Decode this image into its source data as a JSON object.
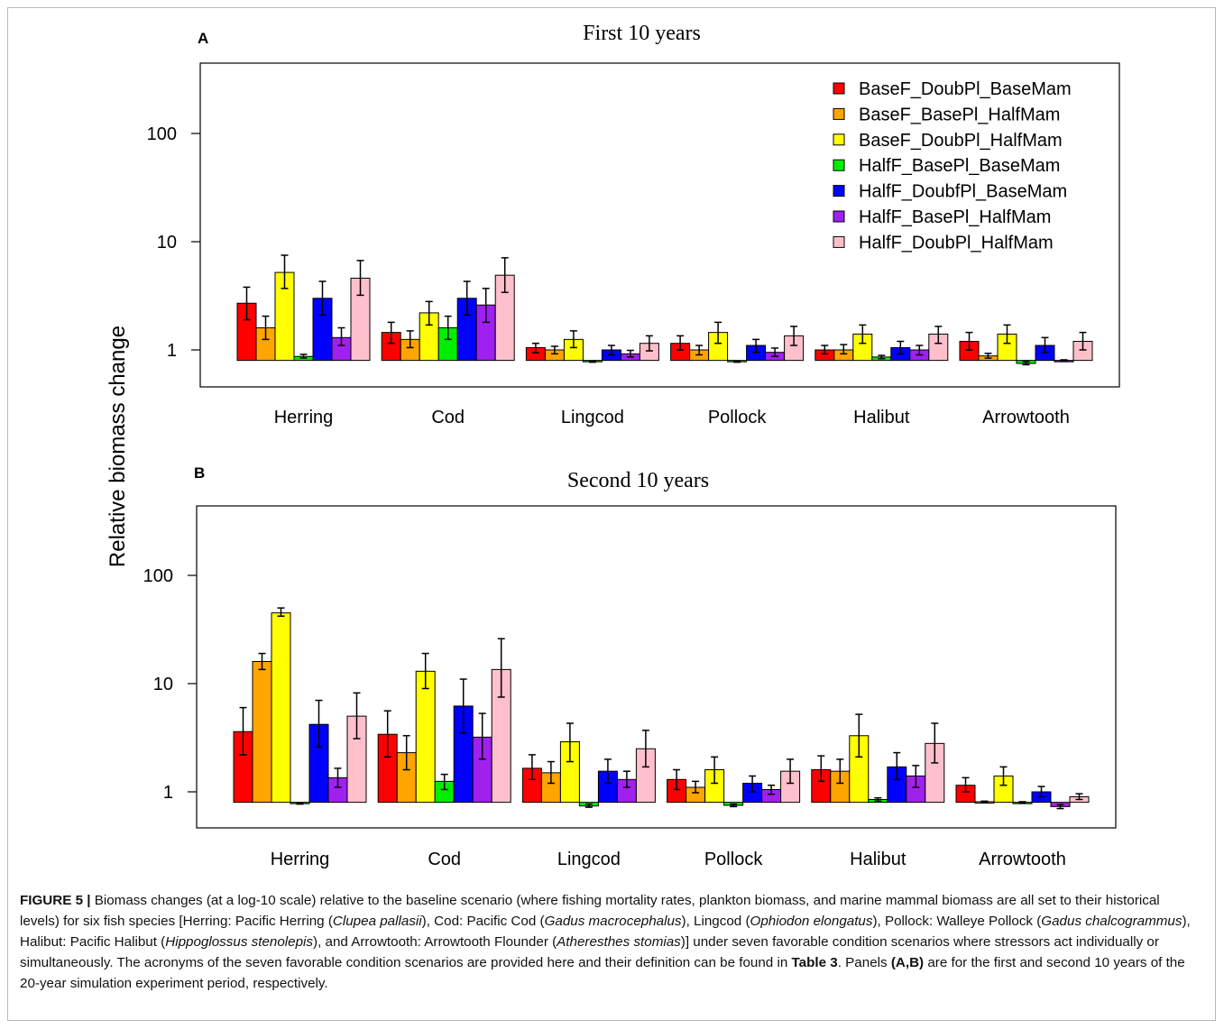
{
  "figure": {
    "ylabel": "Relative biomass change",
    "legend": {
      "position": "top-right",
      "entries": [
        {
          "name": "BaseF_DoubPl_BaseMam",
          "color": "#ff0000"
        },
        {
          "name": "BaseF_BasePl_HalfMam",
          "color": "#ffa500"
        },
        {
          "name": "BaseF_DoubPl_HalfMam",
          "color": "#ffff00"
        },
        {
          "name": "HalfF_BasePl_BaseMam",
          "color": "#00ee00"
        },
        {
          "name": "HalfF_DoubfPl_BaseMam",
          "color": "#0000ff"
        },
        {
          "name": "HalfF_BasePl_HalfMam",
          "color": "#a020f0"
        },
        {
          "name": "HalfF_DoubPl_HalfMam",
          "color": "#ffc0cb"
        }
      ]
    }
  },
  "chart_data": [
    {
      "type": "bar",
      "panel": "A",
      "title": "First 10 years",
      "scale": "log10",
      "yticks": [
        1,
        10,
        100
      ],
      "ytick_labels": [
        "1",
        "10",
        "100"
      ],
      "ylim": [
        0.8,
        300
      ],
      "baseline": 0.8,
      "categories": [
        "Herring",
        "Cod",
        "Lingcod",
        "Pollock",
        "Halibut",
        "Arrowtooth"
      ],
      "series": [
        {
          "name": "BaseF_DoubPl_BaseMam",
          "values": [
            2.7,
            1.45,
            1.05,
            1.15,
            1.0,
            1.2
          ],
          "err_low": [
            1.9,
            1.15,
            0.94,
            1.0,
            0.92,
            1.0
          ],
          "err_high": [
            3.8,
            1.8,
            1.15,
            1.35,
            1.1,
            1.45
          ]
        },
        {
          "name": "BaseF_BasePl_HalfMam",
          "values": [
            1.6,
            1.25,
            1.0,
            1.0,
            1.0,
            0.88
          ],
          "err_low": [
            1.25,
            1.05,
            0.92,
            0.9,
            0.92,
            0.84
          ],
          "err_high": [
            2.05,
            1.5,
            1.08,
            1.1,
            1.12,
            0.93
          ]
        },
        {
          "name": "BaseF_DoubPl_HalfMam",
          "values": [
            5.2,
            2.2,
            1.25,
            1.45,
            1.4,
            1.4
          ],
          "err_low": [
            3.7,
            1.7,
            1.05,
            1.15,
            1.15,
            1.15
          ],
          "err_high": [
            7.5,
            2.8,
            1.5,
            1.8,
            1.7,
            1.7
          ]
        },
        {
          "name": "HalfF_BasePl_BaseMam",
          "values": [
            0.87,
            1.6,
            0.78,
            0.78,
            0.86,
            0.75
          ],
          "err_low": [
            0.84,
            1.25,
            0.77,
            0.77,
            0.83,
            0.73
          ],
          "err_high": [
            0.91,
            2.05,
            0.79,
            0.79,
            0.89,
            0.78
          ]
        },
        {
          "name": "HalfF_DoubfPl_BaseMam",
          "values": [
            3.0,
            3.0,
            1.0,
            1.1,
            1.05,
            1.1
          ],
          "err_low": [
            2.1,
            2.1,
            0.9,
            0.95,
            0.92,
            0.95
          ],
          "err_high": [
            4.3,
            4.3,
            1.1,
            1.25,
            1.2,
            1.3
          ]
        },
        {
          "name": "HalfF_BasePl_HalfMam",
          "values": [
            1.3,
            2.6,
            0.92,
            0.95,
            1.0,
            0.8
          ],
          "err_low": [
            1.1,
            1.8,
            0.86,
            0.87,
            0.9,
            0.79
          ],
          "err_high": [
            1.6,
            3.7,
            0.99,
            1.04,
            1.1,
            0.81
          ]
        },
        {
          "name": "HalfF_DoubPl_HalfMam",
          "values": [
            4.6,
            4.9,
            1.15,
            1.35,
            1.4,
            1.2
          ],
          "err_low": [
            3.2,
            3.4,
            0.98,
            1.1,
            1.15,
            1.0
          ],
          "err_high": [
            6.7,
            7.1,
            1.35,
            1.65,
            1.65,
            1.45
          ]
        }
      ]
    },
    {
      "type": "bar",
      "panel": "B",
      "title": "Second 10 years",
      "scale": "log10",
      "yticks": [
        1,
        10,
        100
      ],
      "ytick_labels": [
        "1",
        "10",
        "100"
      ],
      "ylim": [
        0.8,
        300
      ],
      "baseline": 0.8,
      "categories": [
        "Herring",
        "Cod",
        "Lingcod",
        "Pollock",
        "Halibut",
        "Arrowtooth"
      ],
      "series": [
        {
          "name": "BaseF_DoubPl_BaseMam",
          "values": [
            3.6,
            3.4,
            1.65,
            1.3,
            1.6,
            1.15
          ],
          "err_low": [
            2.2,
            2.1,
            1.3,
            1.05,
            1.25,
            1.0
          ],
          "err_high": [
            6.0,
            5.6,
            2.2,
            1.6,
            2.15,
            1.35
          ]
        },
        {
          "name": "BaseF_BasePl_HalfMam",
          "values": [
            16,
            2.3,
            1.5,
            1.1,
            1.55,
            0.81
          ],
          "err_low": [
            13.5,
            1.6,
            1.2,
            0.98,
            1.2,
            0.8
          ],
          "err_high": [
            19,
            3.3,
            1.9,
            1.25,
            2.0,
            0.82
          ]
        },
        {
          "name": "BaseF_DoubPl_HalfMam",
          "values": [
            45,
            13,
            2.9,
            1.6,
            3.3,
            1.4
          ],
          "err_low": [
            42,
            9.0,
            1.9,
            1.2,
            2.1,
            1.15
          ],
          "err_high": [
            50,
            19,
            4.3,
            2.1,
            5.2,
            1.7
          ]
        },
        {
          "name": "HalfF_BasePl_BaseMam",
          "values": [
            0.78,
            1.25,
            0.74,
            0.75,
            0.85,
            0.8
          ],
          "err_low": [
            0.77,
            1.05,
            0.72,
            0.73,
            0.82,
            0.79
          ],
          "err_high": [
            0.79,
            1.45,
            0.77,
            0.77,
            0.88,
            0.81
          ]
        },
        {
          "name": "HalfF_DoubfPl_BaseMam",
          "values": [
            4.2,
            6.2,
            1.55,
            1.2,
            1.7,
            1.0
          ],
          "err_low": [
            2.6,
            3.5,
            1.2,
            1.0,
            1.3,
            0.9
          ],
          "err_high": [
            7.0,
            11,
            2.0,
            1.4,
            2.3,
            1.12
          ]
        },
        {
          "name": "HalfF_BasePl_HalfMam",
          "values": [
            1.35,
            3.2,
            1.3,
            1.05,
            1.4,
            0.73
          ],
          "err_low": [
            1.1,
            2.0,
            1.1,
            0.95,
            1.1,
            0.7
          ],
          "err_high": [
            1.65,
            5.3,
            1.55,
            1.15,
            1.75,
            0.76
          ]
        },
        {
          "name": "HalfF_DoubPl_HalfMam",
          "values": [
            5.0,
            13.5,
            2.5,
            1.55,
            2.8,
            0.9
          ],
          "err_low": [
            3.1,
            7.5,
            1.7,
            1.2,
            1.85,
            0.85
          ],
          "err_high": [
            8.2,
            26,
            3.7,
            2.0,
            4.3,
            0.96
          ]
        }
      ]
    }
  ],
  "caption": {
    "label": "FIGURE 5 |",
    "segments": [
      {
        "t": " Biomass changes (at a log-10 scale) relative to the baseline scenario (where fishing mortality rates, plankton biomass, and marine mammal biomass are all set to their historical levels) for six fish species [Herring: Pacific Herring (",
        "s": ""
      },
      {
        "t": "Clupea pallasii",
        "s": "i"
      },
      {
        "t": "), Cod: Pacific Cod (",
        "s": ""
      },
      {
        "t": "Gadus macrocephalus",
        "s": "i"
      },
      {
        "t": "), Lingcod (",
        "s": ""
      },
      {
        "t": "Ophiodon elongatus",
        "s": "i"
      },
      {
        "t": "), Pollock: Walleye Pollock (",
        "s": ""
      },
      {
        "t": "Gadus chalcogrammus",
        "s": "i"
      },
      {
        "t": "), Halibut: Pacific Halibut (",
        "s": ""
      },
      {
        "t": "Hippoglossus stenolepis",
        "s": "i"
      },
      {
        "t": "), and Arrowtooth: Arrowtooth Flounder (",
        "s": ""
      },
      {
        "t": "Atheresthes stomias",
        "s": "i"
      },
      {
        "t": ")] under seven favorable condition scenarios where stressors act individually or simultaneously. The acronyms of the seven favorable condition scenarios are provided here and their definition can be found in ",
        "s": ""
      },
      {
        "t": "Table 3",
        "s": "b"
      },
      {
        "t": ". Panels ",
        "s": ""
      },
      {
        "t": "(A,B)",
        "s": "b"
      },
      {
        "t": " are for the first and second 10 years of the 20-year simulation experiment period, respectively.",
        "s": ""
      }
    ]
  }
}
